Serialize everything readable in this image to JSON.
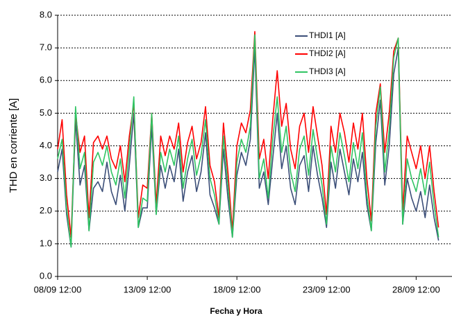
{
  "chart_data": {
    "type": "line",
    "x_label": "Fecha y Hora",
    "y_label": "THD en corriente [A]",
    "x": [
      8.5,
      8.75,
      9,
      9.25,
      9.5,
      9.75,
      10,
      10.25,
      10.5,
      10.75,
      11,
      11.25,
      11.5,
      11.75,
      12,
      12.25,
      12.5,
      12.75,
      13,
      13.25,
      13.5,
      13.75,
      14,
      14.25,
      14.5,
      14.75,
      15,
      15.25,
      15.5,
      15.75,
      16,
      16.25,
      16.5,
      16.75,
      17,
      17.25,
      17.5,
      17.75,
      18,
      18.25,
      18.5,
      18.75,
      19,
      19.25,
      19.5,
      19.75,
      20,
      20.25,
      20.5,
      20.75,
      21,
      21.25,
      21.5,
      21.75,
      22,
      22.25,
      22.5,
      22.75,
      23,
      23.25,
      23.5,
      23.75,
      24,
      24.25,
      24.5,
      24.75,
      25,
      25.25,
      25.5,
      25.75,
      26,
      26.25,
      26.5,
      26.75,
      27,
      27.25,
      27.5,
      27.75,
      28,
      28.25,
      28.5,
      28.75,
      29,
      29.25,
      29.5,
      29.75
    ],
    "series": [
      {
        "name": "THDI1 [A]",
        "color": "#3b4e78",
        "values": [
          3.2,
          3.9,
          1.9,
          0.9,
          4.8,
          2.8,
          3.4,
          1.4,
          2.7,
          2.9,
          2.6,
          3.5,
          2.6,
          2.2,
          3.1,
          2.0,
          3.4,
          5.0,
          1.5,
          2.1,
          2.1,
          4.6,
          1.9,
          3.4,
          2.7,
          3.4,
          2.9,
          3.9,
          2.3,
          3.2,
          3.7,
          2.6,
          3.2,
          4.4,
          2.5,
          2.1,
          1.6,
          3.9,
          2.4,
          1.2,
          3.1,
          3.8,
          3.4,
          4.2,
          7.0,
          2.7,
          3.2,
          2.2,
          3.6,
          5.0,
          3.3,
          4.0,
          2.7,
          2.2,
          3.4,
          3.7,
          2.6,
          4.0,
          3.1,
          2.4,
          1.5,
          3.5,
          2.7,
          3.9,
          3.2,
          2.5,
          3.6,
          2.9,
          3.8,
          2.2,
          1.4,
          4.1,
          5.4,
          2.8,
          4.0,
          6.2,
          7.0,
          1.6,
          3.0,
          2.4,
          2.0,
          2.6,
          1.8,
          2.8,
          1.8,
          1.1
        ]
      },
      {
        "name": "THDI2 [A]",
        "color": "#ff0000",
        "values": [
          3.9,
          4.8,
          2.5,
          1.2,
          5.0,
          3.8,
          4.3,
          1.8,
          4.1,
          4.3,
          3.9,
          4.3,
          3.6,
          3.3,
          4.0,
          2.9,
          4.3,
          5.3,
          1.8,
          2.8,
          2.7,
          5.0,
          2.2,
          4.3,
          3.7,
          4.3,
          3.9,
          4.7,
          3.2,
          4.1,
          4.6,
          3.6,
          4.1,
          5.2,
          3.4,
          2.9,
          1.8,
          4.7,
          3.2,
          1.4,
          4.0,
          4.7,
          4.4,
          5.1,
          7.5,
          3.6,
          4.2,
          3.0,
          4.8,
          6.3,
          4.6,
          5.3,
          3.9,
          3.3,
          4.6,
          5.0,
          3.8,
          5.2,
          4.3,
          3.4,
          1.9,
          4.6,
          3.8,
          5.0,
          4.4,
          3.5,
          4.7,
          3.9,
          5.0,
          3.0,
          1.7,
          5.0,
          5.9,
          3.8,
          5.0,
          6.9,
          7.3,
          2.0,
          4.3,
          3.8,
          3.3,
          4.0,
          3.0,
          4.0,
          2.6,
          1.5
        ]
      },
      {
        "name": "THDI3 [A]",
        "color": "#2fc462",
        "values": [
          3.6,
          4.2,
          2.1,
          0.9,
          5.2,
          3.3,
          3.8,
          1.4,
          3.5,
          3.8,
          3.4,
          4.0,
          3.2,
          2.8,
          3.6,
          2.4,
          3.9,
          5.5,
          1.5,
          2.4,
          2.3,
          5.0,
          1.9,
          3.8,
          3.2,
          3.9,
          3.4,
          4.3,
          2.7,
          3.6,
          4.2,
          3.1,
          3.7,
          4.8,
          3.0,
          2.5,
          1.6,
          4.3,
          2.8,
          1.2,
          3.5,
          4.2,
          3.8,
          4.6,
          7.4,
          3.0,
          3.6,
          2.4,
          4.2,
          5.5,
          3.8,
          4.6,
          3.2,
          2.6,
          3.9,
          4.3,
          3.1,
          4.5,
          3.6,
          2.8,
          1.6,
          4.0,
          3.2,
          4.4,
          3.7,
          2.9,
          4.1,
          3.3,
          4.4,
          2.5,
          1.4,
          4.6,
          5.8,
          3.2,
          4.5,
          6.7,
          7.3,
          1.6,
          3.6,
          3.0,
          2.6,
          3.3,
          2.5,
          3.5,
          2.2,
          1.2
        ]
      }
    ],
    "xlim": [
      8.5,
      30.5
    ],
    "xticks": [
      {
        "value": 8.5,
        "label": "08/09 12:00"
      },
      {
        "value": 13.5,
        "label": "13/09 12:00"
      },
      {
        "value": 18.5,
        "label": "18/09 12:00"
      },
      {
        "value": 23.5,
        "label": "23/09 12:00"
      },
      {
        "value": 28.5,
        "label": "28/09 12:00"
      }
    ],
    "ylim": [
      0,
      8
    ],
    "yticks": [
      {
        "value": 0,
        "label": "0.0"
      },
      {
        "value": 1,
        "label": "1.0"
      },
      {
        "value": 2,
        "label": "2.0"
      },
      {
        "value": 3,
        "label": "3.0"
      },
      {
        "value": 4,
        "label": "4.0"
      },
      {
        "value": 5,
        "label": "5.0"
      },
      {
        "value": 6,
        "label": "6.0"
      },
      {
        "value": 7,
        "label": "7.0"
      },
      {
        "value": 8,
        "label": "8.0"
      }
    ],
    "grid": true,
    "legend": "upper right"
  }
}
